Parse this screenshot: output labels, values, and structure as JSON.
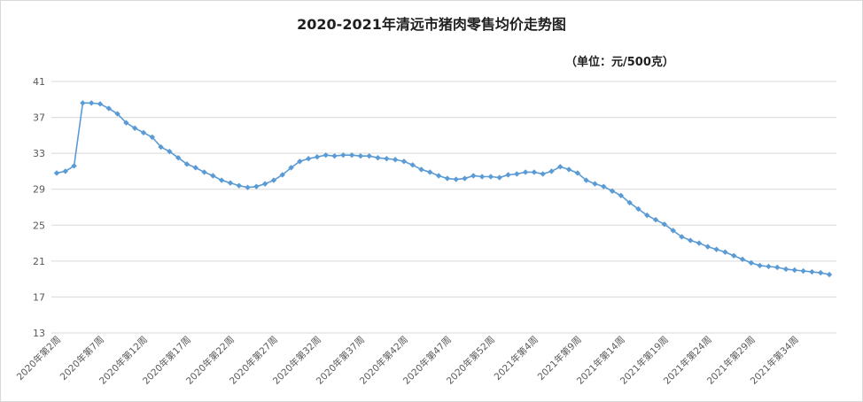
{
  "chart_data": {
    "type": "line",
    "title": "2020-2021年清远市猪肉零售均价走势图",
    "unit_note": "（单位：元/500克）",
    "xlabel": "",
    "ylabel": "",
    "ylim": [
      13,
      41
    ],
    "yticks": [
      13,
      17,
      21,
      25,
      29,
      33,
      37,
      41
    ],
    "grid": true,
    "legend": "none",
    "x_tick_labels": [
      "2020年第2周",
      "2020年第7周",
      "2020年第12周",
      "2020年第17周",
      "2020年第22周",
      "2020年第27周",
      "2020年第32周",
      "2020年第37周",
      "2020年第42周",
      "2020年第47周",
      "2020年第52周",
      "2021年第4周",
      "2021年第9周",
      "2021年第14周",
      "2021年第19周",
      "2021年第24周",
      "2021年第29周",
      "2021年第34周"
    ],
    "series": [
      {
        "color": "#5b9bd5",
        "values": [
          30.8,
          31.0,
          31.6,
          38.6,
          38.6,
          38.5,
          38.0,
          37.4,
          36.4,
          35.8,
          35.3,
          34.8,
          33.7,
          33.2,
          32.5,
          31.8,
          31.4,
          30.9,
          30.5,
          30.0,
          29.7,
          29.4,
          29.2,
          29.3,
          29.6,
          30.0,
          30.6,
          31.4,
          32.1,
          32.4,
          32.6,
          32.8,
          32.7,
          32.8,
          32.8,
          32.7,
          32.7,
          32.5,
          32.4,
          32.3,
          32.1,
          31.7,
          31.2,
          30.9,
          30.5,
          30.2,
          30.1,
          30.2,
          30.5,
          30.4,
          30.4,
          30.3,
          30.6,
          30.7,
          30.9,
          30.9,
          30.7,
          31.0,
          31.5,
          31.2,
          30.8,
          30.0,
          29.6,
          29.3,
          28.8,
          28.3,
          27.5,
          26.8,
          26.1,
          25.6,
          25.1,
          24.4,
          23.7,
          23.3,
          23.0,
          22.6,
          22.3,
          22.0,
          21.6,
          21.2,
          20.8,
          20.5,
          20.4,
          20.3,
          20.1,
          20.0,
          19.9,
          19.8,
          19.7,
          19.5
        ]
      }
    ]
  }
}
